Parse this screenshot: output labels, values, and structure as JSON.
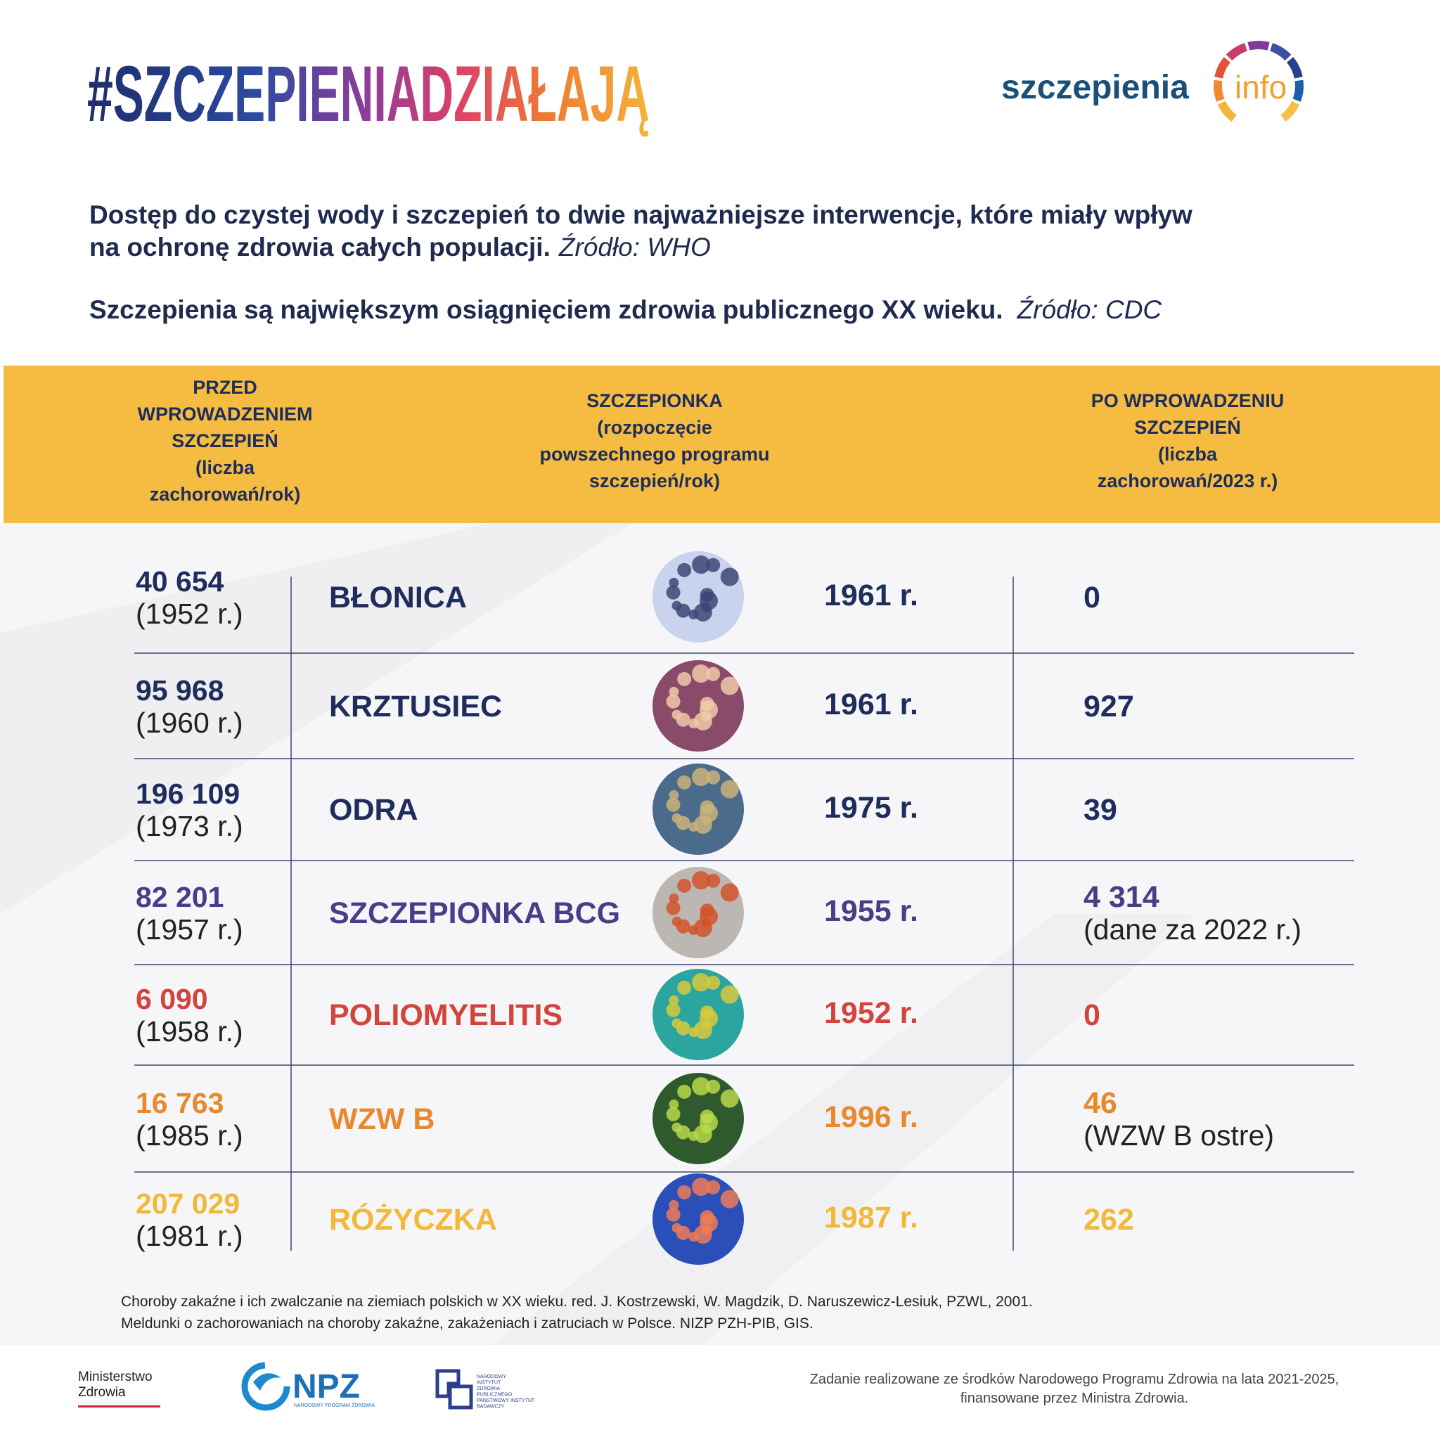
{
  "header": {
    "hashtag": "#SZCZEPIENIADZIAŁAJĄ",
    "logo": {
      "main": "szczepienia",
      "accent": "info"
    }
  },
  "intro": [
    {
      "lines": [
        "Dostęp do czystej wody i szczepień to dwie najważniejsze interwencje, które miały wpływ",
        "na ochronę zdrowia całych populacji."
      ],
      "source": "Źródło: WHO"
    },
    {
      "lines": [
        "Szczepienia są największym osiągnięciem zdrowia publicznego XX wieku."
      ],
      "source": "Źródło: CDC"
    }
  ],
  "table": {
    "columns": [
      [
        "PRZED",
        "WPROWADZENIEM",
        "SZCZEPIEŃ",
        "(liczba",
        "zachorowań/rok)"
      ],
      [
        "SZCZEPIONKA",
        "(rozpoczęcie",
        "powszechnego programu",
        "szczepień/rok)"
      ],
      [
        "PO WPROWADZENIU",
        "SZCZEPIEŃ",
        "(liczba",
        "zachorowań/2023 r.)"
      ]
    ],
    "rows": [
      {
        "cases_before": "40 654",
        "before_year": "(1952 r.)",
        "disease": "BŁONICA",
        "vaccine_year": "1961 r.",
        "cases_after": "0",
        "color": "#1f2d5c"
      },
      {
        "cases_before": "95 968",
        "before_year": "(1960 r.)",
        "disease": "KRZTUSIEC",
        "vaccine_year": "1961 r.",
        "cases_after": "927",
        "color": "#1f2d5c"
      },
      {
        "cases_before": "196 109",
        "before_year": "(1973 r.)",
        "disease": "ODRA",
        "vaccine_year": "1975 r.",
        "cases_after": "39",
        "color": "#1f2d5c"
      },
      {
        "cases_before": "82 201",
        "before_year": "(1957 r.)",
        "disease": "SZCZEPIONKA BCG",
        "vaccine_year": "1955 r.",
        "cases_after": "4 314",
        "after_note": "(dane za 2022 r.)",
        "color": "#4b3c88"
      },
      {
        "cases_before": "6 090",
        "before_year": "(1958 r.)",
        "disease": "POLIOMYELITIS",
        "vaccine_year": "1952 r.",
        "cases_after": "0",
        "color": "#d2453c"
      },
      {
        "cases_before": "16 763",
        "before_year": "(1985 r.)",
        "disease": "WZW B",
        "vaccine_year": "1996 r.",
        "cases_after": "46",
        "after_note": "(WZW B ostre)",
        "color": "#e8892e"
      },
      {
        "cases_before": "207 029",
        "before_year": "(1981 r.)",
        "disease": "RÓŻYCZKA",
        "vaccine_year": "1987 r.",
        "cases_after": "262",
        "color": "#f2b83a"
      }
    ]
  },
  "footnotes": [
    "Choroby zakaźne i ich zwalczanie na ziemiach polskich w XX wieku. red. J. Kostrzewski, W. Magdzik, D. Naruszewicz-Lesiuk, PZWL, 2001.",
    "Meldunki o zachorowaniach na choroby zakaźne, zakażeniach i zatruciach w Polsce. NIZP PZH-PIB, GIS."
  ],
  "footer": {
    "ministry": [
      "Ministerstwo",
      "Zdrowia"
    ],
    "npz": "NPZ",
    "npz_sub": "NARODOWY PROGRAM ZDROWIA",
    "nizp": [
      "NARODOWY",
      "INSTYTUT",
      "ZDROWIA",
      "PUBLICZNEGO",
      "PAŃSTWOWY INSTYTUT",
      "BADAWCZY"
    ],
    "funding": [
      "Zadanie realizowane ze środków Narodowego Programu Zdrowia na lata 2021-2025,",
      "finansowane przez Ministra Zdrowia."
    ]
  }
}
